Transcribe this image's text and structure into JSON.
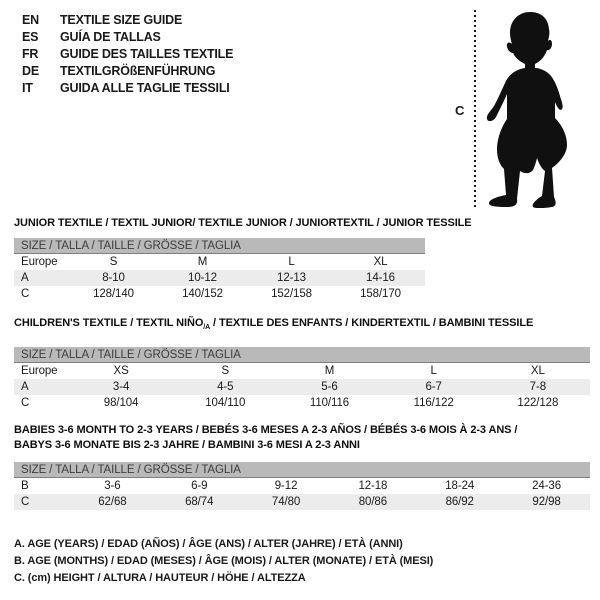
{
  "colors": {
    "header_bar": "#b9b9b9",
    "row_shade": "#ececec",
    "ink": "#1a1a1a"
  },
  "header": {
    "languages": [
      {
        "code": "EN",
        "label": "TEXTILE SIZE GUIDE"
      },
      {
        "code": "ES",
        "label": "GUÍA DE TALLAS"
      },
      {
        "code": "FR",
        "label": "GUIDE DES TAILLES TEXTILE"
      },
      {
        "code": "DE",
        "label": "TEXTILGRÖßENFÜHRUNG"
      },
      {
        "code": "IT",
        "label": "GUIDA ALLE TAGLIE TESSILI"
      }
    ]
  },
  "figure": {
    "icon": "baby-silhouette-icon",
    "height_marker": "C"
  },
  "tables": [
    {
      "title_lines": [
        [
          {
            "text": "JUNIOR TEXTILE / TEXTIL JUNIOR/ TEXTILE JUNIOR / JUNIORTEXTIL / JUNIOR TESSILE"
          }
        ]
      ],
      "size_header": "SIZE / TALLA / TAILLE / GRÖSSE / TAGLIA",
      "rows": [
        [
          "Europe",
          "S",
          "M",
          "L",
          "XL"
        ],
        [
          "A",
          "8-10",
          "10-12",
          "12-13",
          "14-16"
        ],
        [
          "C",
          "128/140",
          "140/152",
          "152/158",
          "158/170"
        ]
      ]
    },
    {
      "title_lines": [
        [
          {
            "text": "CHILDREN'S TEXTILE / TEXTIL NIÑO"
          },
          {
            "text": "/A",
            "sub": true
          },
          {
            "text": " / TEXTILE DES ENFANTS / KINDERTEXTIL / BAMBINI TESSILE"
          }
        ]
      ],
      "size_header": "SIZE / TALLA / TAILLE / GRÖSSE / TAGLIA",
      "rows": [
        [
          "Europe",
          "XS",
          "S",
          "M",
          "L",
          "XL"
        ],
        [
          "A",
          "3-4",
          "4-5",
          "5-6",
          "6-7",
          "7-8"
        ],
        [
          "C",
          "98/104",
          "104/110",
          "110/116",
          "116/122",
          "122/128"
        ]
      ]
    },
    {
      "title_lines": [
        [
          {
            "text": "BABIES 3-6 MONTH TO 2-3 YEARS / BEBÉS 3-6 MESES A 2-3 AÑOS / BÉBÉS 3-6 MOIS À 2-3 ANS /"
          }
        ],
        [
          {
            "text": "BABYS 3-6 MONATE BIS 2-3 JAHRE / BAMBINI 3-6 MESI A 2-3 ANNI"
          }
        ]
      ],
      "size_header": "SIZE / TALLA / TAILLE / GRÖSSE / TAGLIA",
      "rows": [
        [
          "B",
          "3-6",
          "6-9",
          "9-12",
          "12-18",
          "18-24",
          "24-36"
        ],
        [
          "C",
          "62/68",
          "68/74",
          "74/80",
          "80/86",
          "86/92",
          "92/98"
        ]
      ]
    }
  ],
  "legend": {
    "lines": [
      "A. AGE (YEARS) / EDAD (AÑOS) / ÂGE (ANS) / ALTER (JAHRE) / ETÀ (ANNI)",
      "B. AGE (MONTHS) / EDAD (MESES) / ÂGE (MOIS) / ALTER (MONATE) / ETÀ (MESI)",
      "C. (cm) HEIGHT / ALTURA / HAUTEUR / HÖHE / ALTEZZA"
    ]
  }
}
